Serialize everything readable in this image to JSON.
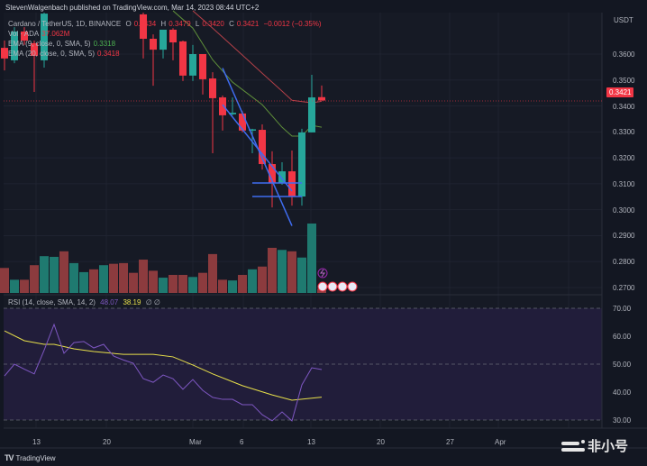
{
  "header": {
    "publisher_line": "StevenWalgenbach published on TradingView.com, Mar 14, 2023 08:44 UTC+2"
  },
  "legend": {
    "symbol": "Cardano / TetherUS, 1D, BINANCE",
    "o_label": "O",
    "o_value": "0.3434",
    "h_label": "H",
    "h_value": "0.3479",
    "l_label": "L",
    "l_value": "0.3420",
    "c_label": "C",
    "c_value": "0.3421",
    "change": "−0.0012 (−0.35%)",
    "volume_label": "Vol · ADA",
    "volume_value": "37.062M",
    "ema1_label": "EMA (9, close, 0, SMA, 5)",
    "ema1_value": "0.3318",
    "ema2_label": "EMA (20, close, 0, SMA, 5)",
    "ema2_value": "0.3418",
    "rsi_label": "RSI (14, close, SMA, 14, 2)",
    "rsi_value": "48.07",
    "rsi_sma_value": "38.19",
    "rsi_extra": "∅ ∅"
  },
  "price_axis": {
    "currency": "USDT",
    "ticks": [
      "0.3600",
      "0.3500",
      "0.3400",
      "0.3300",
      "0.3200",
      "0.3100",
      "0.3000",
      "0.2900",
      "0.2800",
      "0.2700"
    ],
    "last_price": "0.3421"
  },
  "rsi_axis": {
    "ticks": [
      "70.00",
      "60.00",
      "50.00",
      "40.00",
      "30.00"
    ]
  },
  "time_axis": {
    "ticks": [
      "13",
      "20",
      "Mar",
      "6",
      "13",
      "20",
      "27",
      "Apr"
    ]
  },
  "footer": {
    "brand": "TradingView",
    "logo_mark": "TV"
  },
  "watermark": {
    "text": "非小号"
  },
  "colors": {
    "up": "#26a69a",
    "down": "#f23645",
    "vol_up": "#1f7a70",
    "vol_down": "#8c3b3e",
    "ema9": "#5f8f3a",
    "ema20": "#b24048",
    "rsi": "#7e57c2",
    "rsi_sma": "#e8e04a",
    "trendline": "#3f6cf0",
    "background": "#131722"
  },
  "chart_data": [
    {
      "type": "candlestick",
      "title": "Cardano / TetherUS, 1D, BINANCE",
      "ylim": [
        0.27,
        0.377
      ],
      "xlim": [
        "2023-02-10",
        "2023-04-11"
      ],
      "grid": true,
      "candles": [
        {
          "date": "2023-02-10",
          "o": 0.3624,
          "h": 0.3652,
          "l": 0.3537,
          "c": 0.3583
        },
        {
          "date": "2023-02-11",
          "o": 0.3576,
          "h": 0.3704,
          "l": 0.3565,
          "c": 0.3687
        },
        {
          "date": "2023-02-12",
          "o": 0.3687,
          "h": 0.3704,
          "l": 0.3635,
          "c": 0.3652
        },
        {
          "date": "2023-02-13",
          "o": 0.3642,
          "h": 0.3652,
          "l": 0.3454,
          "c": 0.3593
        },
        {
          "date": "2023-02-14",
          "o": 0.3576,
          "h": 0.3774,
          "l": 0.3548,
          "c": 0.3756
        },
        {
          "date": "2023-02-24",
          "o": 0.3753,
          "h": 0.376,
          "l": 0.3583,
          "c": 0.3659
        },
        {
          "date": "2023-02-25",
          "o": 0.3659,
          "h": 0.3676,
          "l": 0.3478,
          "c": 0.3617
        },
        {
          "date": "2023-02-26",
          "o": 0.3617,
          "h": 0.3694,
          "l": 0.3583,
          "c": 0.3694
        },
        {
          "date": "2023-02-27",
          "o": 0.3694,
          "h": 0.37,
          "l": 0.3576,
          "c": 0.3645
        },
        {
          "date": "2023-02-28",
          "o": 0.3649,
          "h": 0.3652,
          "l": 0.3496,
          "c": 0.3517
        },
        {
          "date": "2023-03-01",
          "o": 0.3517,
          "h": 0.3635,
          "l": 0.3496,
          "c": 0.36
        },
        {
          "date": "2023-03-02",
          "o": 0.36,
          "h": 0.36,
          "l": 0.3444,
          "c": 0.3503
        },
        {
          "date": "2023-03-03",
          "o": 0.3506,
          "h": 0.353,
          "l": 0.3218,
          "c": 0.343
        },
        {
          "date": "2023-03-04",
          "o": 0.3433,
          "h": 0.344,
          "l": 0.3305,
          "c": 0.3364
        },
        {
          "date": "2023-03-05",
          "o": 0.3368,
          "h": 0.3433,
          "l": 0.3364,
          "c": 0.3374
        },
        {
          "date": "2023-03-06",
          "o": 0.3371,
          "h": 0.338,
          "l": 0.3298,
          "c": 0.3305
        },
        {
          "date": "2023-03-07",
          "o": 0.3305,
          "h": 0.3312,
          "l": 0.3218,
          "c": 0.331
        },
        {
          "date": "2023-03-08",
          "o": 0.3308,
          "h": 0.3329,
          "l": 0.3155,
          "c": 0.3176
        },
        {
          "date": "2023-03-09",
          "o": 0.3176,
          "h": 0.3225,
          "l": 0.3009,
          "c": 0.3103
        },
        {
          "date": "2023-03-10",
          "o": 0.3103,
          "h": 0.3183,
          "l": 0.3096,
          "c": 0.3148
        },
        {
          "date": "2023-03-11",
          "o": 0.3148,
          "h": 0.3228,
          "l": 0.3016,
          "c": 0.3051
        },
        {
          "date": "2023-03-12",
          "o": 0.3051,
          "h": 0.3312,
          "l": 0.3016,
          "c": 0.3298
        },
        {
          "date": "2023-03-13",
          "o": 0.3298,
          "h": 0.352,
          "l": 0.3298,
          "c": 0.3433
        },
        {
          "date": "2023-03-14",
          "o": 0.3434,
          "h": 0.3479,
          "l": 0.342,
          "c": 0.3421
        }
      ],
      "ema9": [
        [
          "2023-02-27",
          0.3767
        ],
        [
          "2023-03-01",
          0.37
        ],
        [
          "2023-03-03",
          0.3578
        ],
        [
          "2023-03-05",
          0.3492
        ],
        [
          "2023-03-08",
          0.3405
        ],
        [
          "2023-03-10",
          0.3318
        ],
        [
          "2023-03-11",
          0.3284
        ],
        [
          "2023-03-12",
          0.3284
        ],
        [
          "2023-03-13",
          0.3325
        ],
        [
          "2023-03-14",
          0.3318
        ]
      ],
      "ema20": [
        [
          "2023-03-01",
          0.3767
        ],
        [
          "2023-03-03",
          0.37
        ],
        [
          "2023-03-06",
          0.3596
        ],
        [
          "2023-03-08",
          0.3526
        ],
        [
          "2023-03-10",
          0.3457
        ],
        [
          "2023-03-11",
          0.3422
        ],
        [
          "2023-03-13",
          0.3412
        ],
        [
          "2023-03-14",
          0.3418
        ]
      ],
      "drawings": [
        {
          "kind": "trendline",
          "from": [
            "2023-03-04",
            0.3546
          ],
          "to": [
            "2023-03-11",
            0.2938
          ]
        },
        {
          "kind": "trendline",
          "from": [
            "2023-03-04",
            0.3405
          ],
          "to": [
            "2023-03-11",
            0.3072
          ]
        },
        {
          "kind": "horizontal",
          "from": [
            "2023-03-07",
            0.3103
          ],
          "to": [
            "2023-03-12",
            0.3103
          ]
        },
        {
          "kind": "horizontal",
          "from": [
            "2023-03-07",
            0.3051
          ],
          "to": [
            "2023-03-12",
            0.3051
          ]
        }
      ],
      "volume_relative": [
        [
          "2023-02-10",
          36,
          "down"
        ],
        [
          "2023-02-11",
          19,
          "up"
        ],
        [
          "2023-02-12",
          19,
          "down"
        ],
        [
          "2023-02-13",
          40,
          "down"
        ],
        [
          "2023-02-14",
          53,
          "up"
        ],
        [
          "2023-02-15",
          52,
          "up"
        ],
        [
          "2023-02-16",
          60,
          "down"
        ],
        [
          "2023-02-17",
          43,
          "up"
        ],
        [
          "2023-02-18",
          30,
          "up"
        ],
        [
          "2023-02-19",
          34,
          "down"
        ],
        [
          "2023-02-20",
          40,
          "up"
        ],
        [
          "2023-02-21",
          42,
          "down"
        ],
        [
          "2023-02-22",
          43,
          "down"
        ],
        [
          "2023-02-23",
          29,
          "down"
        ],
        [
          "2023-02-24",
          48,
          "down"
        ],
        [
          "2023-02-25",
          32,
          "down"
        ],
        [
          "2023-02-26",
          22,
          "up"
        ],
        [
          "2023-02-27",
          26,
          "down"
        ],
        [
          "2023-02-28",
          26,
          "down"
        ],
        [
          "2023-03-01",
          23,
          "up"
        ],
        [
          "2023-03-02",
          29,
          "down"
        ],
        [
          "2023-03-03",
          56,
          "down"
        ],
        [
          "2023-03-04",
          19,
          "down"
        ],
        [
          "2023-03-05",
          18,
          "up"
        ],
        [
          "2023-03-06",
          26,
          "down"
        ],
        [
          "2023-03-07",
          34,
          "up"
        ],
        [
          "2023-03-08",
          38,
          "down"
        ],
        [
          "2023-03-09",
          65,
          "down"
        ],
        [
          "2023-03-10",
          62,
          "up"
        ],
        [
          "2023-03-11",
          60,
          "down"
        ],
        [
          "2023-03-12",
          51,
          "up"
        ],
        [
          "2023-03-13",
          100,
          "up"
        ],
        [
          "2023-03-14",
          6,
          "down"
        ]
      ]
    },
    {
      "type": "line",
      "title": "RSI (14, close, SMA, 14, 2)",
      "ylim": [
        25,
        75
      ],
      "bands": [
        30,
        50,
        70
      ],
      "series": [
        {
          "name": "RSI",
          "values": [
            [
              "2023-02-10",
              45.8
            ],
            [
              "2023-02-11",
              50.0
            ],
            [
              "2023-02-12",
              48.2
            ],
            [
              "2023-02-13",
              46.5
            ],
            [
              "2023-02-14",
              55.0
            ],
            [
              "2023-02-15",
              64.2
            ],
            [
              "2023-02-16",
              53.9
            ],
            [
              "2023-02-17",
              57.7
            ],
            [
              "2023-02-18",
              58.1
            ],
            [
              "2023-02-19",
              55.8
            ],
            [
              "2023-02-20",
              57.1
            ],
            [
              "2023-02-21",
              52.9
            ],
            [
              "2023-02-22",
              51.5
            ],
            [
              "2023-02-23",
              50.3
            ],
            [
              "2023-02-24",
              44.8
            ],
            [
              "2023-02-25",
              43.5
            ],
            [
              "2023-02-26",
              46.1
            ],
            [
              "2023-02-27",
              44.8
            ],
            [
              "2023-02-28",
              41.0
            ],
            [
              "2023-03-01",
              44.5
            ],
            [
              "2023-03-02",
              40.6
            ],
            [
              "2023-03-03",
              38.1
            ],
            [
              "2023-03-04",
              37.4
            ],
            [
              "2023-03-05",
              37.4
            ],
            [
              "2023-03-06",
              35.5
            ],
            [
              "2023-03-07",
              35.5
            ],
            [
              "2023-03-08",
              31.9
            ],
            [
              "2023-03-09",
              29.7
            ],
            [
              "2023-03-10",
              32.9
            ],
            [
              "2023-03-11",
              29.7
            ],
            [
              "2023-03-12",
              42.6
            ],
            [
              "2023-03-13",
              48.7
            ],
            [
              "2023-03-14",
              48.07
            ]
          ]
        },
        {
          "name": "SMA",
          "values": [
            [
              "2023-02-10",
              61.9
            ],
            [
              "2023-02-12",
              58.4
            ],
            [
              "2023-02-14",
              57.1
            ],
            [
              "2023-02-15",
              57.1
            ],
            [
              "2023-02-17",
              55.5
            ],
            [
              "2023-02-19",
              54.5
            ],
            [
              "2023-02-22",
              53.5
            ],
            [
              "2023-02-25",
              53.5
            ],
            [
              "2023-02-27",
              52.6
            ],
            [
              "2023-03-01",
              49.7
            ],
            [
              "2023-03-03",
              46.5
            ],
            [
              "2023-03-06",
              42.3
            ],
            [
              "2023-03-09",
              39.0
            ],
            [
              "2023-03-11",
              37.1
            ],
            [
              "2023-03-14",
              38.19
            ]
          ]
        }
      ]
    }
  ]
}
